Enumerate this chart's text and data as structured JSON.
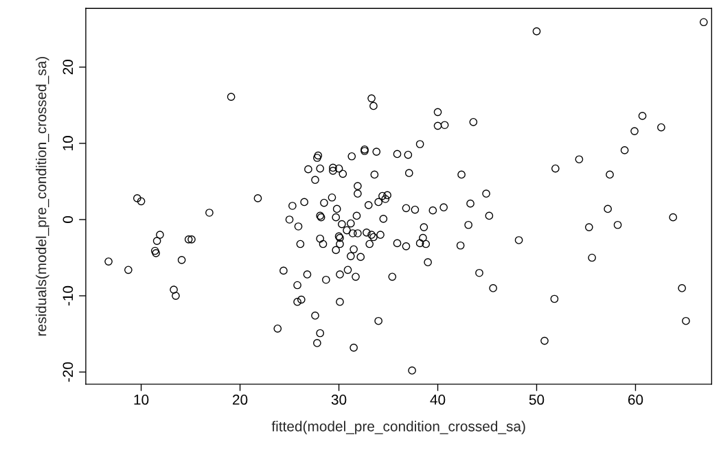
{
  "chart_data": {
    "type": "scatter",
    "xlabel": "fitted(model_pre_condition_crossed_sa)",
    "ylabel": "residuals(model_pre_condition_crossed_sa)",
    "xlim": [
      4.4,
      67.7
    ],
    "ylim": [
      -21.6,
      27.7
    ],
    "xticks": [
      10,
      20,
      30,
      40,
      50,
      60
    ],
    "yticks": [
      -20,
      -10,
      0,
      10,
      20
    ],
    "grid": false,
    "marker": "circle",
    "series": [
      {
        "color": "#000000",
        "x": [
          6.7,
          8.7,
          9.6,
          10.0,
          11.4,
          11.5,
          11.6,
          11.9,
          13.3,
          13.5,
          14.1,
          14.8,
          15.1,
          16.9,
          19.1,
          21.8,
          23.8,
          24.4,
          25.0,
          25.3,
          25.8,
          25.9,
          25.8,
          26.2,
          26.1,
          26.5,
          26.8,
          26.9,
          27.6,
          27.6,
          27.8,
          27.9,
          27.8,
          28.1,
          28.1,
          28.2,
          28.1,
          28.1,
          28.4,
          28.5,
          28.7,
          29.3,
          29.4,
          29.4,
          29.7,
          29.7,
          29.8,
          30.0,
          30.0,
          30.1,
          30.1,
          30.1,
          30.1,
          30.3,
          30.4,
          30.8,
          30.9,
          31.2,
          31.2,
          31.3,
          31.4,
          31.5,
          31.5,
          31.7,
          31.8,
          31.9,
          31.9,
          31.9,
          32.2,
          32.6,
          32.6,
          32.8,
          33.0,
          33.1,
          33.3,
          33.5,
          33.3,
          33.5,
          33.6,
          33.8,
          34.0,
          34.0,
          34.2,
          34.4,
          34.5,
          34.7,
          34.9,
          35.4,
          35.9,
          35.9,
          36.8,
          36.8,
          37.0,
          37.1,
          37.4,
          37.7,
          38.2,
          38.2,
          38.6,
          38.5,
          38.8,
          39.0,
          39.5,
          40.0,
          40.0,
          40.6,
          40.7,
          42.3,
          42.4,
          43.1,
          43.3,
          43.6,
          44.2,
          44.9,
          45.2,
          45.6,
          48.2,
          50.0,
          50.8,
          51.8,
          51.9,
          54.3,
          55.3,
          55.6,
          57.2,
          57.4,
          58.2,
          58.9,
          59.9,
          60.7,
          62.6,
          63.8,
          64.7,
          65.1,
          66.9
        ],
        "values": [
          -5.5,
          -6.6,
          2.8,
          2.4,
          -4.1,
          -4.4,
          -2.8,
          -2.0,
          -9.2,
          -10.0,
          -5.3,
          -2.6,
          -2.6,
          0.9,
          16.1,
          2.8,
          -14.3,
          -6.7,
          0.0,
          1.8,
          -8.6,
          -0.9,
          -10.8,
          -10.5,
          -3.2,
          2.3,
          -7.2,
          6.6,
          -12.6,
          5.2,
          8.1,
          8.4,
          -16.2,
          6.7,
          0.5,
          0.3,
          -2.5,
          -14.9,
          -3.2,
          2.2,
          -7.9,
          2.9,
          6.8,
          6.4,
          0.3,
          -4.0,
          1.4,
          6.7,
          -2.2,
          -2.4,
          -3.2,
          -10.8,
          -7.2,
          -0.6,
          6.0,
          -1.4,
          -6.6,
          -0.5,
          -4.8,
          8.3,
          -1.8,
          -16.8,
          -3.9,
          -7.5,
          0.5,
          4.4,
          -1.8,
          3.4,
          -4.9,
          9.0,
          9.2,
          -1.7,
          1.9,
          -3.2,
          15.9,
          14.9,
          -2.0,
          -2.3,
          5.9,
          8.9,
          2.3,
          -13.3,
          -2.0,
          3.1,
          0.1,
          2.7,
          3.2,
          -7.5,
          8.6,
          -3.1,
          1.5,
          -3.5,
          8.5,
          6.1,
          -19.8,
          1.3,
          9.9,
          -3.1,
          -1.0,
          -2.4,
          -3.2,
          -5.6,
          1.2,
          14.1,
          12.3,
          1.6,
          12.4,
          -3.4,
          5.9,
          -0.7,
          2.1,
          12.8,
          -7.0,
          3.4,
          0.5,
          -9.0,
          -2.7,
          24.7,
          -15.9,
          -10.4,
          6.7,
          7.9,
          -1.0,
          -5.0,
          1.4,
          5.9,
          -0.7,
          9.1,
          11.6,
          13.6,
          12.1,
          0.3,
          -9.0,
          -13.3,
          25.9
        ]
      }
    ]
  }
}
